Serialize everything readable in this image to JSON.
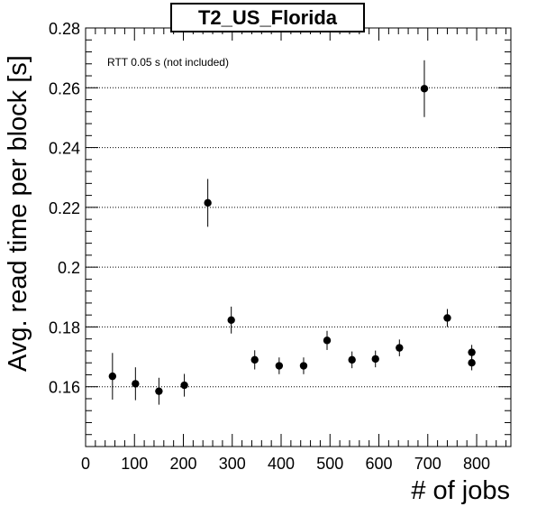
{
  "chart_data": {
    "type": "scatter",
    "title": "T2_US_Florida",
    "xlabel": "# of jobs",
    "ylabel": "Avg. read time per block [s]",
    "annotation": "RTT 0.05 s (not included)",
    "xlim": [
      0,
      870
    ],
    "ylim": [
      0.14,
      0.28
    ],
    "x_ticks": [
      0,
      100,
      200,
      300,
      400,
      500,
      600,
      700,
      800
    ],
    "y_ticks": [
      0.16,
      0.18,
      0.2,
      0.22,
      0.24,
      0.26,
      0.28
    ],
    "y_tick_labels": [
      "0.16",
      "0.18",
      "0.2",
      "0.22",
      "0.24",
      "0.26",
      "0.28"
    ],
    "grid": "horizontal dotted",
    "points": [
      {
        "x": 55,
        "y": 0.1635,
        "err": 0.0078
      },
      {
        "x": 102,
        "y": 0.161,
        "err": 0.0055
      },
      {
        "x": 150,
        "y": 0.1585,
        "err": 0.0045
      },
      {
        "x": 202,
        "y": 0.1605,
        "err": 0.0038
      },
      {
        "x": 250,
        "y": 0.2215,
        "err": 0.008
      },
      {
        "x": 298,
        "y": 0.1823,
        "err": 0.0045
      },
      {
        "x": 346,
        "y": 0.169,
        "err": 0.0032
      },
      {
        "x": 396,
        "y": 0.167,
        "err": 0.0028
      },
      {
        "x": 446,
        "y": 0.167,
        "err": 0.0028
      },
      {
        "x": 494,
        "y": 0.1755,
        "err": 0.0032
      },
      {
        "x": 545,
        "y": 0.169,
        "err": 0.0028
      },
      {
        "x": 593,
        "y": 0.1693,
        "err": 0.0028
      },
      {
        "x": 642,
        "y": 0.173,
        "err": 0.0028
      },
      {
        "x": 693,
        "y": 0.2597,
        "err": 0.0095
      },
      {
        "x": 740,
        "y": 0.183,
        "err": 0.003
      },
      {
        "x": 790,
        "y": 0.1715,
        "err": 0.0025
      },
      {
        "x": 790,
        "y": 0.168,
        "err": 0.0025
      }
    ]
  }
}
